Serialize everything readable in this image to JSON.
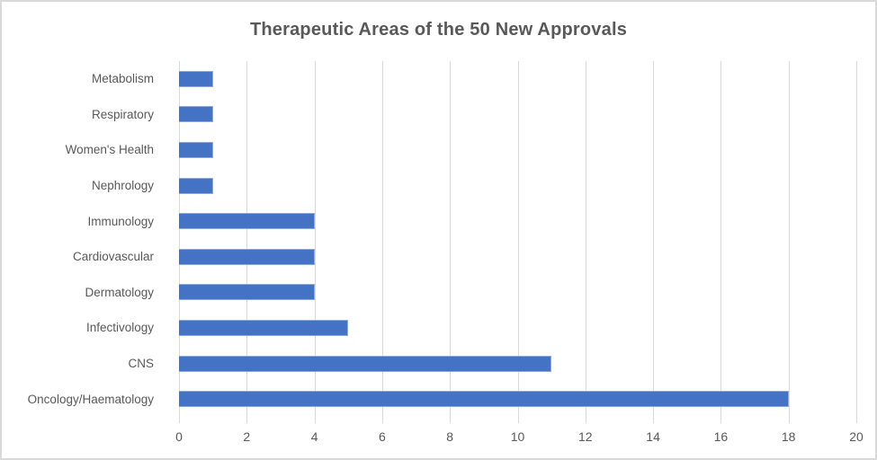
{
  "chart_data": {
    "type": "bar",
    "orientation": "horizontal",
    "title": "Therapeutic Areas of the 50 New Approvals",
    "categories": [
      "Metabolism",
      "Respiratory",
      "Women's Health",
      "Nephrology",
      "Immunology",
      "Cardiovascular",
      "Dermatology",
      "Infectivology",
      "CNS",
      "Oncology/Haematology"
    ],
    "values": [
      1,
      1,
      1,
      1,
      4,
      4,
      4,
      5,
      11,
      18
    ],
    "xlabel": "",
    "ylabel": "",
    "xlim": [
      0,
      20
    ],
    "xticks": [
      0,
      2,
      4,
      6,
      8,
      10,
      12,
      14,
      16,
      18,
      20
    ],
    "grid": true,
    "legend": "none",
    "bar_color": "#4472C4",
    "bar_edge_color": "#8FAADC",
    "gridline_color": "#D9D9D9",
    "text_color": "#595959",
    "border_color": "#D9D9D9",
    "background_color": "#FFFFFF"
  }
}
